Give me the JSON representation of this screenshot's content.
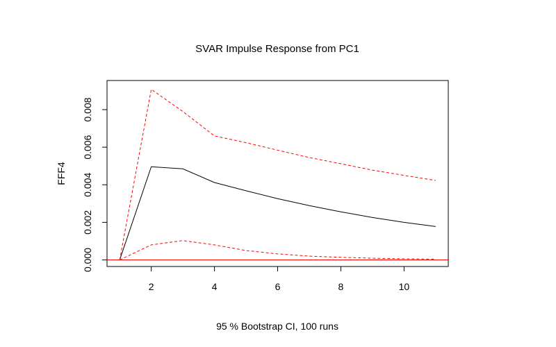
{
  "chart_data": {
    "type": "line",
    "title": "SVAR Impulse Response from PC1",
    "xlabel": "95 % Bootstrap CI,  100 runs",
    "ylabel": "FFF4",
    "xlim": [
      0.6,
      11.4
    ],
    "ylim": [
      -0.00035,
      0.00955
    ],
    "x_ticks": [
      2,
      4,
      6,
      8,
      10
    ],
    "x_tick_labels": [
      "2",
      "4",
      "6",
      "8",
      "10"
    ],
    "y_ticks": [
      0,
      0.002,
      0.004,
      0.006,
      0.008
    ],
    "y_tick_labels": [
      "0.000",
      "0.002",
      "0.004",
      "0.006",
      "0.008"
    ],
    "grid": false,
    "reference_line": {
      "y": 0,
      "color": "#ff0000"
    },
    "x": [
      1,
      2,
      3,
      4,
      5,
      6,
      7,
      8,
      9,
      10,
      11
    ],
    "series": [
      {
        "role": "response",
        "color": "#000000",
        "dash": "solid",
        "values": [
          0.0,
          0.00496,
          0.00485,
          0.00412,
          0.00368,
          0.00326,
          0.00289,
          0.00256,
          0.00226,
          0.002,
          0.00178
        ]
      },
      {
        "role": "upper",
        "color": "#ff0000",
        "dash": "dashed",
        "values": [
          0.0,
          0.00908,
          0.0079,
          0.0066,
          0.00624,
          0.00584,
          0.00545,
          0.00512,
          0.00478,
          0.0045,
          0.00423
        ]
      },
      {
        "role": "lower",
        "color": "#ff0000",
        "dash": "dashed",
        "values": [
          0.0,
          0.0008,
          0.00103,
          0.0008,
          0.0005,
          0.00032,
          0.0002,
          0.00014,
          9e-05,
          6e-05,
          4e-05
        ]
      }
    ]
  }
}
